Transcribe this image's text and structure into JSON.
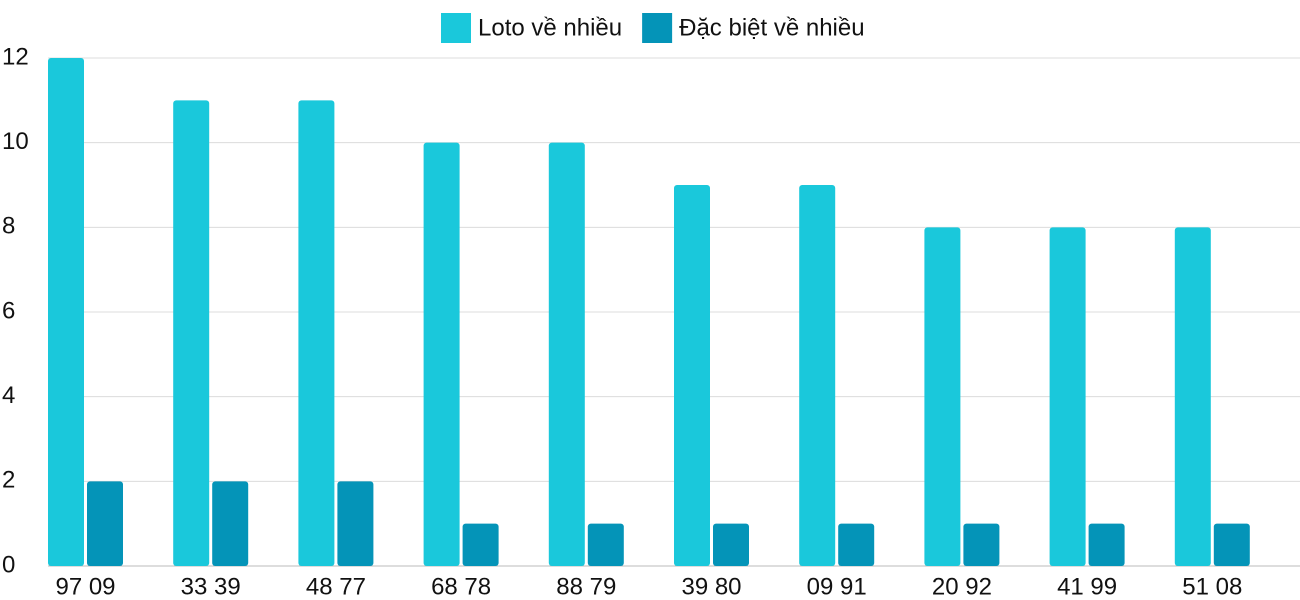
{
  "chart_data": {
    "type": "bar",
    "categories": [
      "97 09",
      "33 39",
      "48 77",
      "68 78",
      "88 79",
      "39 80",
      "09 91",
      "20 92",
      "41 99",
      "51 08"
    ],
    "series": [
      {
        "name": "Loto về nhiều",
        "color": "#1ac8db",
        "values": [
          12,
          11,
          11,
          10,
          10,
          9,
          9,
          8,
          8,
          8
        ]
      },
      {
        "name": "Đặc biệt về nhiều",
        "color": "#0494b8",
        "values": [
          2,
          2,
          2,
          1,
          1,
          1,
          1,
          1,
          1,
          1
        ]
      }
    ],
    "ylim": [
      0,
      12
    ],
    "yticks": [
      0,
      2,
      4,
      6,
      8,
      10,
      12
    ],
    "grid": true,
    "legend": "top"
  }
}
